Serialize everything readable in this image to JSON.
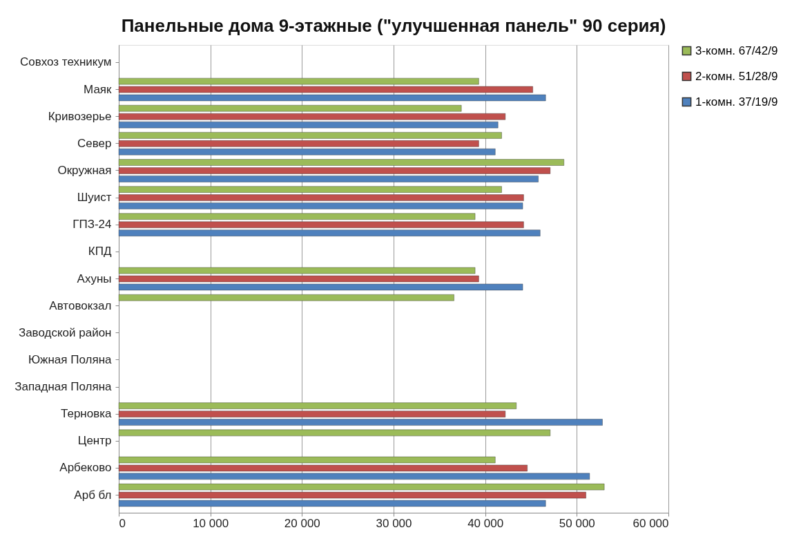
{
  "chart_data": {
    "type": "bar",
    "orientation": "horizontal",
    "title": "Панельные дома 9-этажные (\"улучшенная панель\" 90 серия)",
    "categories": [
      "Совхоз техникум",
      "Маяк",
      "Кривозерье",
      "Север",
      "Окружная",
      "Шуист",
      "ГПЗ-24",
      "КПД",
      "Ахуны",
      "Автовокзал",
      "Заводской район",
      "Южная Поляна",
      "Западная Поляна",
      "Терновка",
      "Центр",
      "Арбеково",
      "Арб бл"
    ],
    "series": [
      {
        "name": "3-комн. 67/42/9",
        "color": "#9bbb59",
        "values": [
          null,
          39300,
          37400,
          41800,
          48600,
          41800,
          38900,
          null,
          38900,
          36600,
          null,
          null,
          null,
          43400,
          47100,
          41100,
          53000
        ]
      },
      {
        "name": "2-комн. 51/28/9",
        "color": "#c0504d",
        "values": [
          null,
          45200,
          42200,
          39300,
          47100,
          44200,
          44200,
          null,
          39300,
          null,
          null,
          null,
          null,
          42200,
          null,
          44600,
          51000
        ]
      },
      {
        "name": "1-комн. 37/19/9",
        "color": "#4f81bd",
        "values": [
          null,
          46600,
          41400,
          41100,
          45800,
          44100,
          46000,
          null,
          44100,
          null,
          null,
          null,
          null,
          52800,
          null,
          51400,
          46600
        ]
      }
    ],
    "xlim": [
      0,
      60000
    ],
    "xticks": [
      0,
      {
        "value": 10000,
        "label": "10 000"
      },
      {
        "value": 20000,
        "label": "20 000"
      },
      {
        "value": 30000,
        "label": "30 000"
      },
      {
        "value": 40000,
        "label": "40 000"
      },
      {
        "value": 50000,
        "label": "50 000"
      },
      {
        "value": 60000,
        "label": "60 000"
      }
    ],
    "grid": "x",
    "legend": "right"
  }
}
